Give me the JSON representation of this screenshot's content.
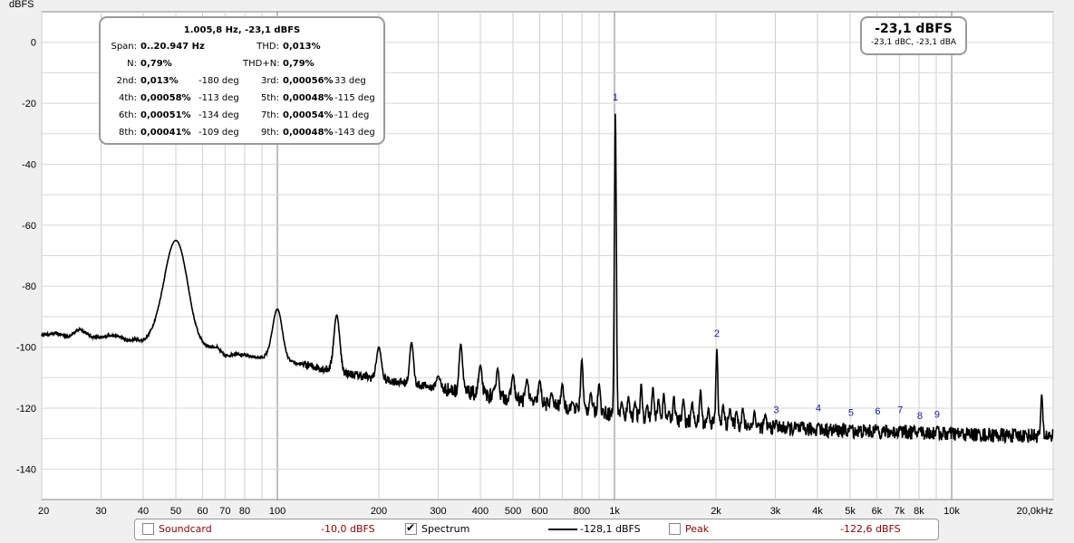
{
  "chart_data": {
    "type": "line",
    "ylabel": "dBFS",
    "xlabel": "",
    "xscale": "log",
    "xlim": [
      20,
      20000
    ],
    "ylim": [
      -150,
      10
    ],
    "y_ticks": [
      0,
      -20,
      -40,
      -60,
      -80,
      -100,
      -120,
      -140
    ],
    "x_ticks": [
      {
        "v": 20,
        "label": "20"
      },
      {
        "v": 30,
        "label": "30"
      },
      {
        "v": 40,
        "label": "40"
      },
      {
        "v": 50,
        "label": "50"
      },
      {
        "v": 60,
        "label": "60"
      },
      {
        "v": 70,
        "label": "70"
      },
      {
        "v": 80,
        "label": "80"
      },
      {
        "v": 100,
        "label": "100"
      },
      {
        "v": 200,
        "label": "200"
      },
      {
        "v": 300,
        "label": "300"
      },
      {
        "v": 400,
        "label": "400"
      },
      {
        "v": 500,
        "label": "500"
      },
      {
        "v": 600,
        "label": "600"
      },
      {
        "v": 800,
        "label": "800"
      },
      {
        "v": 1000,
        "label": "1k"
      },
      {
        "v": 2000,
        "label": "2k"
      },
      {
        "v": 3000,
        "label": "3k"
      },
      {
        "v": 4000,
        "label": "4k"
      },
      {
        "v": 5000,
        "label": "5k"
      },
      {
        "v": 6000,
        "label": "6k"
      },
      {
        "v": 7000,
        "label": "7k"
      },
      {
        "v": 8000,
        "label": "8k"
      },
      {
        "v": 10000,
        "label": "10k"
      },
      {
        "v": 20000,
        "label": "20,0kHz"
      }
    ],
    "series": [
      {
        "baseline": [
          [
            20,
            -96
          ],
          [
            22,
            -95.5
          ],
          [
            24,
            -96.5
          ],
          [
            26,
            -94
          ],
          [
            28,
            -96.5
          ],
          [
            30,
            -97
          ],
          [
            32,
            -96
          ],
          [
            34,
            -96.5
          ],
          [
            36,
            -98
          ],
          [
            38,
            -97.5
          ],
          [
            40,
            -98.5
          ],
          [
            43,
            -98
          ],
          [
            46,
            -98.5
          ],
          [
            48,
            -97
          ],
          [
            52,
            -100
          ],
          [
            56,
            -102
          ],
          [
            60,
            -101
          ],
          [
            66,
            -100
          ],
          [
            70,
            -103
          ],
          [
            76,
            -102
          ],
          [
            82,
            -103
          ],
          [
            90,
            -103.5
          ],
          [
            95,
            -103
          ],
          [
            110,
            -105
          ],
          [
            130,
            -106.5
          ],
          [
            150,
            -108
          ],
          [
            200,
            -110.5
          ],
          [
            250,
            -112
          ],
          [
            300,
            -113.5
          ],
          [
            400,
            -115.5
          ],
          [
            500,
            -117
          ],
          [
            600,
            -118.5
          ],
          [
            800,
            -120.5
          ],
          [
            1000,
            -122
          ],
          [
            1200,
            -123
          ],
          [
            1500,
            -124
          ],
          [
            2000,
            -125
          ],
          [
            3000,
            -126.5
          ],
          [
            5000,
            -127.5
          ],
          [
            8000,
            -128
          ],
          [
            10000,
            -128.5
          ],
          [
            15000,
            -129
          ],
          [
            20000,
            -129
          ]
        ],
        "peaks": [
          [
            50,
            -65,
            0.05
          ],
          [
            100,
            -87.5,
            0.02
          ],
          [
            150,
            -89.5,
            0.012
          ],
          [
            200,
            -100,
            0.01
          ],
          [
            250,
            -98.5,
            0.008
          ],
          [
            300,
            -109.5,
            0.008
          ],
          [
            350,
            -99,
            0.007
          ],
          [
            400,
            -106,
            0.007
          ],
          [
            450,
            -107,
            0.006
          ],
          [
            500,
            -109,
            0.006
          ],
          [
            550,
            -110.5,
            0.006
          ],
          [
            600,
            -111,
            0.006
          ],
          [
            650,
            -115,
            0.005
          ],
          [
            700,
            -112,
            0.005
          ],
          [
            750,
            -118,
            0.005
          ],
          [
            800,
            -104,
            0.005
          ],
          [
            850,
            -115,
            0.005
          ],
          [
            900,
            -112,
            0.005
          ],
          [
            1005.8,
            -23.1,
            0.004
          ],
          [
            1050,
            -118,
            0.004
          ],
          [
            1100,
            -116,
            0.004
          ],
          [
            1150,
            -118,
            0.004
          ],
          [
            1200,
            -112,
            0.004
          ],
          [
            1250,
            -119,
            0.004
          ],
          [
            1300,
            -113,
            0.004
          ],
          [
            1350,
            -117,
            0.004
          ],
          [
            1400,
            -115,
            0.004
          ],
          [
            1450,
            -121,
            0.004
          ],
          [
            1500,
            -116,
            0.004
          ],
          [
            1600,
            -117,
            0.004
          ],
          [
            1700,
            -118,
            0.004
          ],
          [
            1800,
            -114,
            0.004
          ],
          [
            1900,
            -120,
            0.004
          ],
          [
            2011.6,
            -100.6,
            0.004
          ],
          [
            2100,
            -119,
            0.004
          ],
          [
            2200,
            -120,
            0.004
          ],
          [
            2300,
            -121,
            0.004
          ],
          [
            2400,
            -120,
            0.004
          ],
          [
            2600,
            -121,
            0.004
          ],
          [
            2800,
            -122,
            0.004
          ],
          [
            3017,
            -124,
            0.004
          ],
          [
            4023,
            -125,
            0.004
          ],
          [
            5029,
            -126,
            0.004
          ],
          [
            6035,
            -126,
            0.004
          ],
          [
            7041,
            -126,
            0.004
          ],
          [
            8046,
            -127,
            0.004
          ],
          [
            9052,
            -126,
            0.004
          ],
          [
            18500,
            -115.5,
            0.004
          ]
        ],
        "markers": [
          {
            "label": "1",
            "f": 1005.8,
            "db": -20
          },
          {
            "label": "2",
            "f": 2011.6,
            "db": -97.5
          },
          {
            "label": "3",
            "f": 3017,
            "db": -122.5
          },
          {
            "label": "4",
            "f": 4023,
            "db": -122
          },
          {
            "label": "5",
            "f": 5029,
            "db": -123.5
          },
          {
            "label": "6",
            "f": 6035,
            "db": -123
          },
          {
            "label": "7",
            "f": 7041,
            "db": -122.5
          },
          {
            "label": "8",
            "f": 8046,
            "db": -124.5
          },
          {
            "label": "9",
            "f": 9052,
            "db": -124
          }
        ]
      }
    ]
  },
  "info": {
    "title": "1.005,8 Hz, -23,1 dBFS",
    "rows": [
      {
        "l1": "Span:",
        "v1": "0..20.947 Hz",
        "p1": "",
        "l2": "THD:",
        "v2": "0,013%",
        "p2": ""
      },
      {
        "l1": "N:",
        "v1": "0,79%",
        "p1": "",
        "l2": "THD+N:",
        "v2": "0,79%",
        "p2": ""
      },
      {
        "l1": "2nd:",
        "v1": "0,013%",
        "p1": "-180 deg",
        "l2": "3rd:",
        "v2": "0,00056%",
        "p2": "33 deg"
      },
      {
        "l1": "4th:",
        "v1": "0,00058%",
        "p1": "-113 deg",
        "l2": "5th:",
        "v2": "0,00048%",
        "p2": "-115 deg"
      },
      {
        "l1": "6th:",
        "v1": "0,00051%",
        "p1": "-134 deg",
        "l2": "7th:",
        "v2": "0,00054%",
        "p2": "-11 deg"
      },
      {
        "l1": "8th:",
        "v1": "0,00041%",
        "p1": "-109 deg",
        "l2": "9th:",
        "v2": "0,00048%",
        "p2": "-143 deg"
      }
    ]
  },
  "level": {
    "main": "-23,1 dBFS",
    "sub": "-23,1 dBC, -23,1 dBA"
  },
  "legend": {
    "soundcard_label": "Soundcard",
    "soundcard_value": "-10,0 dBFS",
    "spectrum_label": "Spectrum",
    "spectrum_value": "-128,1 dBFS",
    "peak_label": "Peak",
    "peak_value": "-122,6 dBFS"
  }
}
